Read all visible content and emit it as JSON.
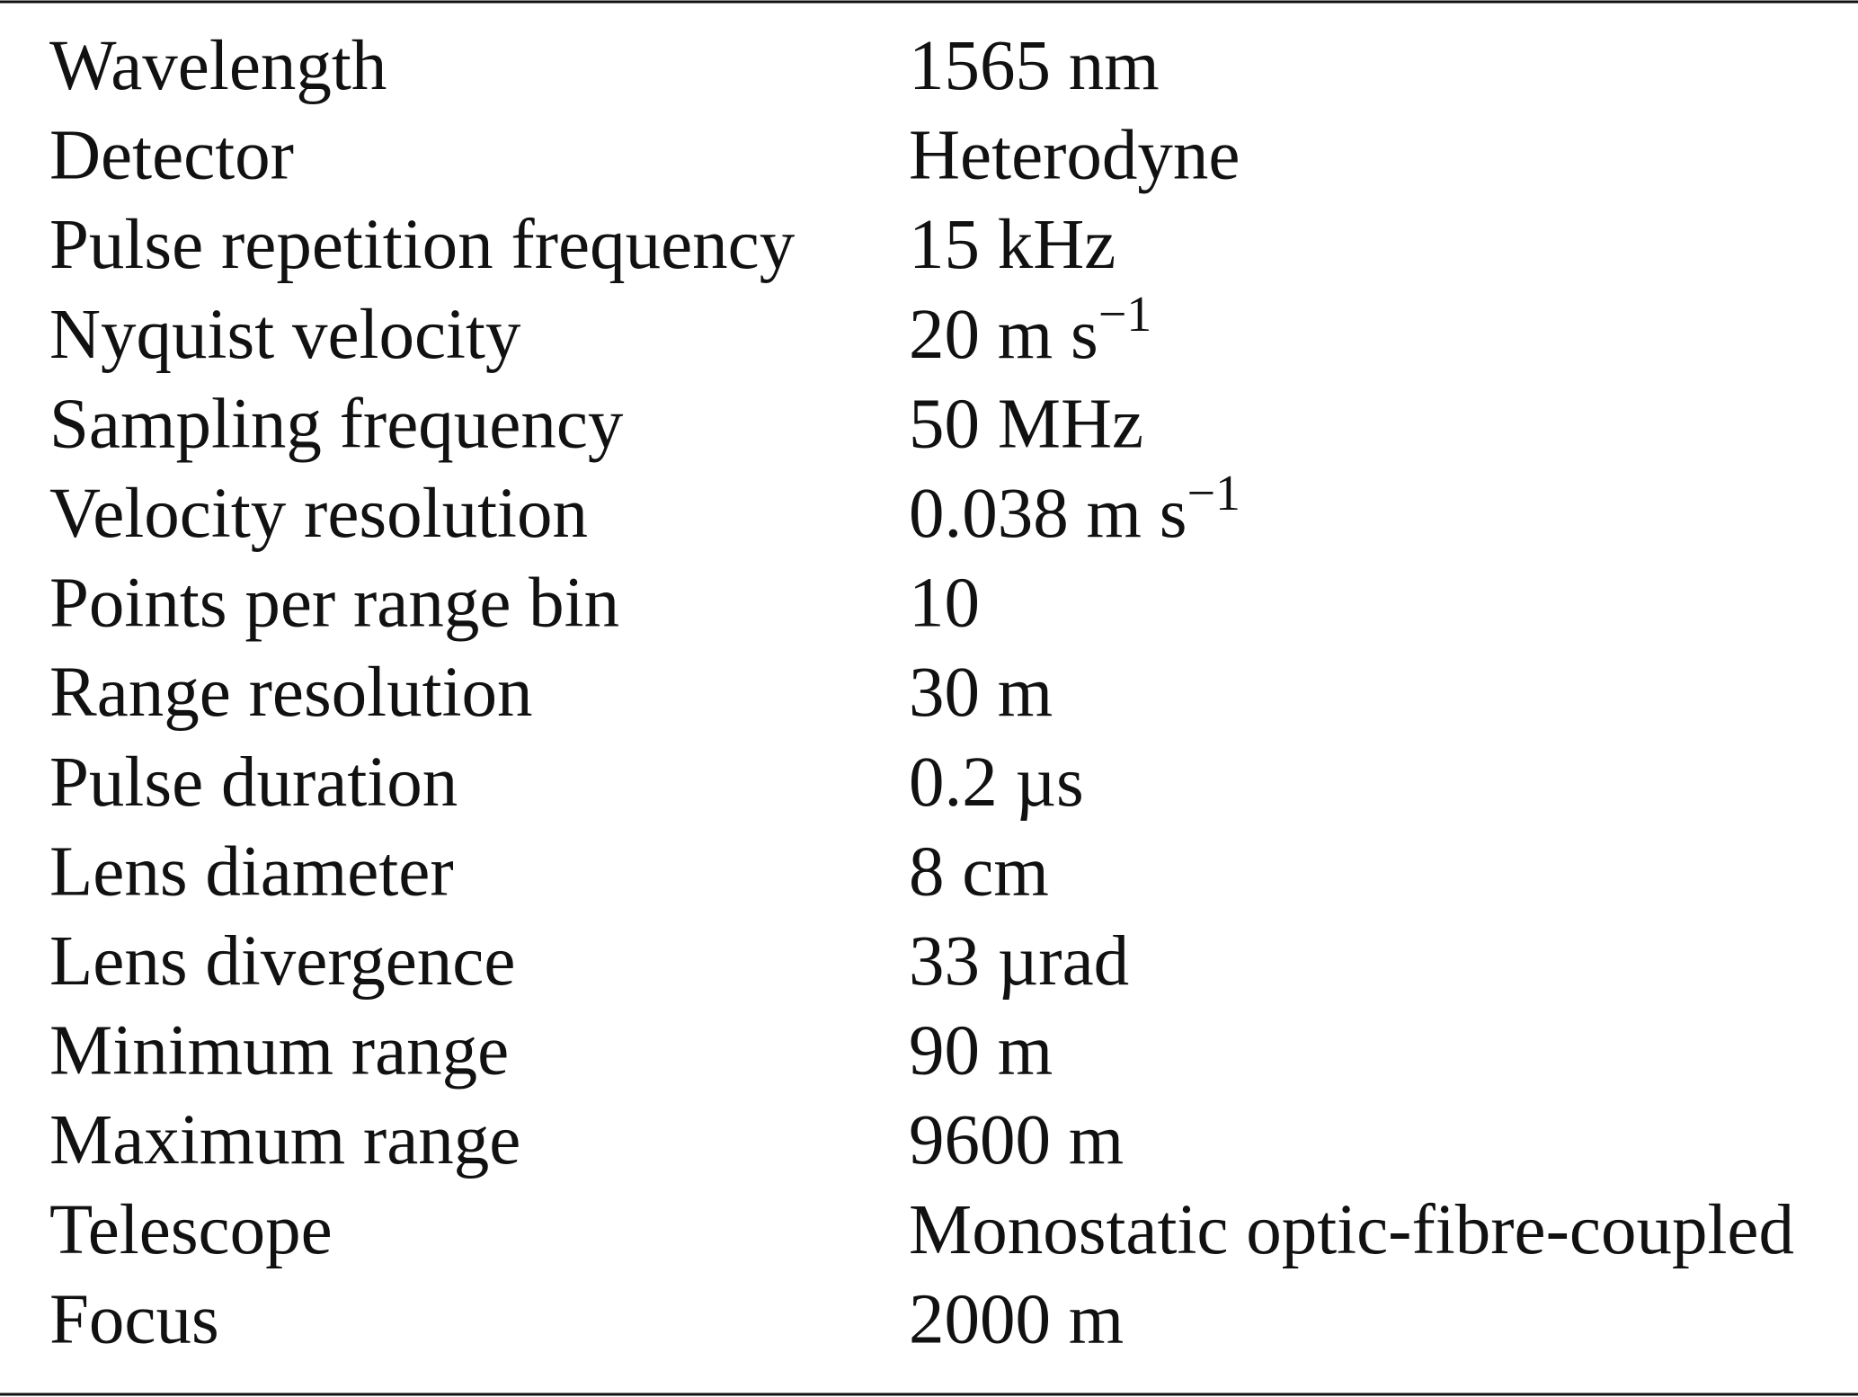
{
  "table": {
    "rows": [
      [
        "Wavelength",
        "1565 nm"
      ],
      [
        "Detector",
        "Heterodyne"
      ],
      [
        "Pulse repetition frequency",
        "15 kHz"
      ],
      [
        "Nyquist velocity",
        {
          "text": "20 m s",
          "superscript": "−1"
        }
      ],
      [
        "Sampling frequency",
        "50 MHz"
      ],
      [
        "Velocity resolution",
        {
          "text": "0.038 m s",
          "superscript": "−1"
        }
      ],
      [
        "Points per range bin",
        "10"
      ],
      [
        "Range resolution",
        "30 m"
      ],
      [
        "Pulse duration",
        "0.2 µs"
      ],
      [
        "Lens diameter",
        "8 cm"
      ],
      [
        "Lens divergence",
        "33 µrad"
      ],
      [
        "Minimum range",
        "90 m"
      ],
      [
        "Maximum range",
        "9600 m"
      ],
      [
        "Telescope",
        "Monostatic optic-fibre-coupled"
      ],
      [
        "Focus",
        "2000 m"
      ]
    ]
  }
}
